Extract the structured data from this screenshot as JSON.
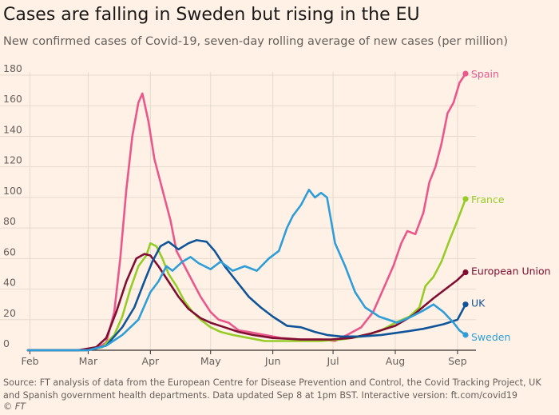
{
  "title": "Cases are falling in Sweden but rising in the EU",
  "subtitle": "New confirmed cases of Covid-19, seven-day rolling average of new cases (per million)",
  "source": "Source: FT analysis of data from the European Centre for Disease Prevention and Control, the Covid Tracking Project, UK and Spanish government health departments. Data updated Sep 8 at 1pm BST. Interactive version: ft.com/covid19",
  "copyright": "© FT",
  "colors": {
    "background": "#fff1e5",
    "grid": "#e6d9ce",
    "axis": "#33302e",
    "Spain": "#e9578c",
    "France": "#96cc28",
    "European Union": "#800d32",
    "UK": "#0f5499",
    "Sweden": "#2f9ed8"
  },
  "chart_data": {
    "type": "line",
    "x_axis": {
      "type": "date",
      "min": "2020-01-31",
      "max": "2020-09-07",
      "ticks": [
        {
          "date": "2020-02-01",
          "label": "Feb"
        },
        {
          "date": "2020-03-01",
          "label": "Mar"
        },
        {
          "date": "2020-04-01",
          "label": "Apr"
        },
        {
          "date": "2020-05-01",
          "label": "May"
        },
        {
          "date": "2020-06-01",
          "label": "Jun"
        },
        {
          "date": "2020-07-01",
          "label": "Jul"
        },
        {
          "date": "2020-08-01",
          "label": "Aug"
        },
        {
          "date": "2020-09-01",
          "label": "Sep"
        }
      ]
    },
    "y_axis": {
      "min": 0,
      "max": 180,
      "ticks": [
        0,
        20,
        40,
        60,
        80,
        100,
        120,
        140,
        160,
        180
      ]
    },
    "grid": true,
    "legend": "direct labels at line ends",
    "series": [
      {
        "name": "Spain",
        "points": [
          [
            "2020-01-31",
            0
          ],
          [
            "2020-02-25",
            0
          ],
          [
            "2020-03-05",
            1
          ],
          [
            "2020-03-10",
            5
          ],
          [
            "2020-03-14",
            25
          ],
          [
            "2020-03-17",
            60
          ],
          [
            "2020-03-20",
            105
          ],
          [
            "2020-03-23",
            140
          ],
          [
            "2020-03-26",
            162
          ],
          [
            "2020-03-28",
            168
          ],
          [
            "2020-03-31",
            150
          ],
          [
            "2020-04-03",
            125
          ],
          [
            "2020-04-07",
            105
          ],
          [
            "2020-04-11",
            85
          ],
          [
            "2020-04-14",
            65
          ],
          [
            "2020-04-18",
            55
          ],
          [
            "2020-04-22",
            45
          ],
          [
            "2020-04-26",
            35
          ],
          [
            "2020-05-01",
            25
          ],
          [
            "2020-05-05",
            20
          ],
          [
            "2020-05-10",
            18
          ],
          [
            "2020-05-15",
            13
          ],
          [
            "2020-05-20",
            12
          ],
          [
            "2020-05-28",
            10
          ],
          [
            "2020-06-05",
            8
          ],
          [
            "2020-06-15",
            7
          ],
          [
            "2020-06-25",
            7
          ],
          [
            "2020-07-02",
            6
          ],
          [
            "2020-07-08",
            10
          ],
          [
            "2020-07-15",
            15
          ],
          [
            "2020-07-21",
            25
          ],
          [
            "2020-07-26",
            40
          ],
          [
            "2020-07-31",
            55
          ],
          [
            "2020-08-04",
            70
          ],
          [
            "2020-08-07",
            78
          ],
          [
            "2020-08-11",
            76
          ],
          [
            "2020-08-15",
            90
          ],
          [
            "2020-08-18",
            110
          ],
          [
            "2020-08-21",
            120
          ],
          [
            "2020-08-24",
            135
          ],
          [
            "2020-08-27",
            155
          ],
          [
            "2020-08-30",
            162
          ],
          [
            "2020-09-02",
            175
          ],
          [
            "2020-09-05",
            181
          ]
        ]
      },
      {
        "name": "France",
        "points": [
          [
            "2020-01-31",
            0
          ],
          [
            "2020-02-29",
            0
          ],
          [
            "2020-03-08",
            2
          ],
          [
            "2020-03-14",
            10
          ],
          [
            "2020-03-18",
            22
          ],
          [
            "2020-03-22",
            40
          ],
          [
            "2020-03-26",
            55
          ],
          [
            "2020-03-30",
            62
          ],
          [
            "2020-04-01",
            70
          ],
          [
            "2020-04-04",
            68
          ],
          [
            "2020-04-07",
            60
          ],
          [
            "2020-04-10",
            50
          ],
          [
            "2020-04-14",
            42
          ],
          [
            "2020-04-18",
            32
          ],
          [
            "2020-04-22",
            25
          ],
          [
            "2020-04-26",
            20
          ],
          [
            "2020-05-01",
            15
          ],
          [
            "2020-05-06",
            12
          ],
          [
            "2020-05-12",
            10
          ],
          [
            "2020-05-20",
            8
          ],
          [
            "2020-05-28",
            6
          ],
          [
            "2020-06-05",
            6
          ],
          [
            "2020-06-15",
            6
          ],
          [
            "2020-06-25",
            6
          ],
          [
            "2020-07-05",
            7
          ],
          [
            "2020-07-15",
            9
          ],
          [
            "2020-07-25",
            13
          ],
          [
            "2020-08-01",
            18
          ],
          [
            "2020-08-08",
            22
          ],
          [
            "2020-08-13",
            28
          ],
          [
            "2020-08-16",
            42
          ],
          [
            "2020-08-20",
            48
          ],
          [
            "2020-08-24",
            58
          ],
          [
            "2020-08-28",
            72
          ],
          [
            "2020-09-01",
            85
          ],
          [
            "2020-09-05",
            99
          ]
        ]
      },
      {
        "name": "European Union",
        "points": [
          [
            "2020-01-31",
            0
          ],
          [
            "2020-02-25",
            0
          ],
          [
            "2020-03-05",
            2
          ],
          [
            "2020-03-10",
            8
          ],
          [
            "2020-03-15",
            25
          ],
          [
            "2020-03-20",
            45
          ],
          [
            "2020-03-25",
            60
          ],
          [
            "2020-03-29",
            63
          ],
          [
            "2020-04-01",
            62
          ],
          [
            "2020-04-05",
            55
          ],
          [
            "2020-04-10",
            45
          ],
          [
            "2020-04-15",
            35
          ],
          [
            "2020-04-20",
            27
          ],
          [
            "2020-04-26",
            21
          ],
          [
            "2020-05-01",
            18
          ],
          [
            "2020-05-08",
            15
          ],
          [
            "2020-05-15",
            12
          ],
          [
            "2020-05-22",
            10
          ],
          [
            "2020-06-01",
            8
          ],
          [
            "2020-06-15",
            7
          ],
          [
            "2020-06-30",
            7
          ],
          [
            "2020-07-10",
            8
          ],
          [
            "2020-07-20",
            11
          ],
          [
            "2020-08-01",
            16
          ],
          [
            "2020-08-10",
            23
          ],
          [
            "2020-08-20",
            34
          ],
          [
            "2020-08-27",
            41
          ],
          [
            "2020-09-01",
            46
          ],
          [
            "2020-09-05",
            51
          ]
        ]
      },
      {
        "name": "UK",
        "points": [
          [
            "2020-01-31",
            0
          ],
          [
            "2020-03-01",
            0
          ],
          [
            "2020-03-10",
            3
          ],
          [
            "2020-03-18",
            15
          ],
          [
            "2020-03-24",
            28
          ],
          [
            "2020-03-29",
            45
          ],
          [
            "2020-04-02",
            58
          ],
          [
            "2020-04-06",
            68
          ],
          [
            "2020-04-10",
            71
          ],
          [
            "2020-04-15",
            66
          ],
          [
            "2020-04-20",
            70
          ],
          [
            "2020-04-24",
            72
          ],
          [
            "2020-04-29",
            71
          ],
          [
            "2020-05-03",
            65
          ],
          [
            "2020-05-08",
            55
          ],
          [
            "2020-05-14",
            45
          ],
          [
            "2020-05-20",
            35
          ],
          [
            "2020-05-26",
            28
          ],
          [
            "2020-06-01",
            22
          ],
          [
            "2020-06-08",
            16
          ],
          [
            "2020-06-15",
            15
          ],
          [
            "2020-06-22",
            12
          ],
          [
            "2020-06-28",
            10
          ],
          [
            "2020-07-05",
            9
          ],
          [
            "2020-07-15",
            9
          ],
          [
            "2020-07-25",
            10
          ],
          [
            "2020-08-05",
            12
          ],
          [
            "2020-08-15",
            14
          ],
          [
            "2020-08-25",
            17
          ],
          [
            "2020-09-01",
            20
          ],
          [
            "2020-09-05",
            30
          ]
        ]
      },
      {
        "name": "Sweden",
        "points": [
          [
            "2020-01-31",
            0
          ],
          [
            "2020-03-01",
            0
          ],
          [
            "2020-03-10",
            3
          ],
          [
            "2020-03-18",
            10
          ],
          [
            "2020-03-26",
            20
          ],
          [
            "2020-04-01",
            38
          ],
          [
            "2020-04-05",
            45
          ],
          [
            "2020-04-09",
            55
          ],
          [
            "2020-04-12",
            52
          ],
          [
            "2020-04-17",
            58
          ],
          [
            "2020-04-21",
            61
          ],
          [
            "2020-04-25",
            57
          ],
          [
            "2020-05-01",
            53
          ],
          [
            "2020-05-06",
            58
          ],
          [
            "2020-05-12",
            52
          ],
          [
            "2020-05-18",
            55
          ],
          [
            "2020-05-24",
            52
          ],
          [
            "2020-05-30",
            60
          ],
          [
            "2020-06-04",
            65
          ],
          [
            "2020-06-08",
            80
          ],
          [
            "2020-06-11",
            88
          ],
          [
            "2020-06-15",
            95
          ],
          [
            "2020-06-19",
            105
          ],
          [
            "2020-06-22",
            100
          ],
          [
            "2020-06-25",
            103
          ],
          [
            "2020-06-28",
            100
          ],
          [
            "2020-07-02",
            70
          ],
          [
            "2020-07-07",
            55
          ],
          [
            "2020-07-12",
            38
          ],
          [
            "2020-07-17",
            28
          ],
          [
            "2020-07-24",
            22
          ],
          [
            "2020-08-02",
            18
          ],
          [
            "2020-08-09",
            22
          ],
          [
            "2020-08-15",
            26
          ],
          [
            "2020-08-20",
            30
          ],
          [
            "2020-08-25",
            25
          ],
          [
            "2020-08-30",
            18
          ],
          [
            "2020-09-02",
            13
          ],
          [
            "2020-09-05",
            10
          ]
        ]
      }
    ]
  }
}
